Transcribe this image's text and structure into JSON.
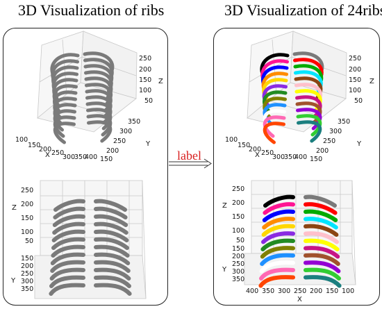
{
  "titles": {
    "left": "3D Visualization of ribs",
    "right": "3D Visualization of 24ribs"
  },
  "arrow_label": "label",
  "colors": {
    "gray_ribs": "#7a7a7a",
    "label_red": "#d81e1e",
    "rib_palette": [
      "#000000",
      "#7a7a7a",
      "#ff1493",
      "#ff0000",
      "#0000ff",
      "#00aa00",
      "#ff8c00",
      "#00e5ff",
      "#ffd700",
      "#8b4513",
      "#8a2be2",
      "#ffc0cb",
      "#228b22",
      "#ffff00",
      "#808000",
      "#c71585",
      "#1e90ff",
      "#a0522d",
      "#ffffff",
      "#9400d3",
      "#ff69b4",
      "#32cd32",
      "#ff4500",
      "#1b7f7f"
    ]
  },
  "top_plot": {
    "z_ticks": [
      "250",
      "200",
      "150",
      "100",
      "50"
    ],
    "z_label": "Z",
    "y_ticks": [
      "350",
      "300",
      "250",
      "200",
      "150"
    ],
    "y_label": "Y",
    "x_ticks": [
      "100",
      "150",
      "200",
      "250",
      "300",
      "350",
      "400"
    ],
    "x_label": "X"
  },
  "bottom_plot": {
    "z_ticks": [
      "250",
      "200",
      "150",
      "100",
      "50"
    ],
    "z_label": "Z",
    "y_ticks": [
      "150",
      "200",
      "250",
      "300",
      "350"
    ],
    "y_label": "Y"
  },
  "bottom_plot_right": {
    "x_ticks": [
      "400",
      "350",
      "300",
      "250",
      "200",
      "150",
      "100"
    ],
    "x_label": "X"
  }
}
